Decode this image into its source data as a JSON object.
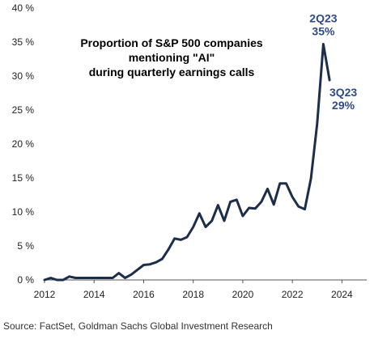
{
  "chart_data": {
    "type": "line",
    "title_lines": [
      "Proportion of S&P 500 companies",
      "mentioning \"AI\"",
      "during quarterly earnings calls"
    ],
    "xlabel": "",
    "ylabel": "",
    "xlim": [
      2012,
      2025
    ],
    "ylim": [
      0,
      40
    ],
    "x_ticks": [
      2012,
      2014,
      2016,
      2018,
      2020,
      2022,
      2024
    ],
    "y_ticks": [
      0,
      5,
      10,
      15,
      20,
      25,
      30,
      35,
      40
    ],
    "y_tick_suffix": " %",
    "grid": false,
    "line_color": "#1c2e4a",
    "series": [
      {
        "x": [
          2012.0,
          2012.25,
          2012.5,
          2012.75,
          2013.0,
          2013.25,
          2013.5,
          2013.75,
          2014.0,
          2014.25,
          2014.5,
          2014.75,
          2015.0,
          2015.25,
          2015.5,
          2015.75,
          2016.0,
          2016.25,
          2016.5,
          2016.75,
          2017.0,
          2017.25,
          2017.5,
          2017.75,
          2018.0,
          2018.25,
          2018.5,
          2018.75,
          2019.0,
          2019.25,
          2019.5,
          2019.75,
          2020.0,
          2020.25,
          2020.5,
          2020.75,
          2021.0,
          2021.25,
          2021.5,
          2021.75,
          2022.0,
          2022.25,
          2022.5,
          2022.75,
          2023.0,
          2023.25,
          2023.5
        ],
        "values": [
          0.0,
          0.3,
          0.0,
          0.0,
          0.5,
          0.3,
          0.3,
          0.3,
          0.3,
          0.3,
          0.3,
          0.3,
          1.0,
          0.3,
          0.8,
          1.5,
          2.2,
          2.3,
          2.6,
          3.1,
          4.5,
          6.1,
          5.9,
          6.3,
          7.8,
          9.8,
          7.8,
          8.7,
          11.0,
          8.7,
          11.5,
          11.8,
          9.4,
          10.6,
          10.5,
          11.5,
          13.4,
          11.1,
          14.2,
          14.2,
          12.2,
          10.8,
          10.4,
          14.9,
          23.0,
          34.7,
          29.4
        ]
      }
    ],
    "annotations": [
      {
        "lines": [
          "2Q23",
          "35%"
        ],
        "x": 2023.25,
        "y": 34.7,
        "color": "#2f4a8a"
      },
      {
        "lines": [
          "3Q23",
          "29%"
        ],
        "x": 2023.5,
        "y": 29.4,
        "color": "#2f4a8a"
      }
    ]
  },
  "source": "Source: FactSet, Goldman Sachs Global Investment Research"
}
